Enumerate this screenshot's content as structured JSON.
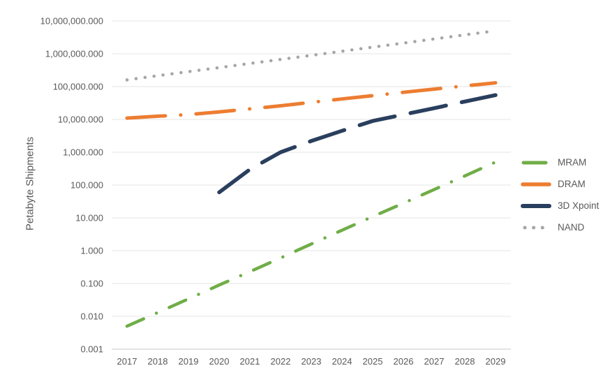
{
  "chart_data": {
    "type": "line",
    "title": "",
    "ylabel": "Petabyte Shipments",
    "xlabel": "",
    "y_scale": "log",
    "ylim_log": [
      -3,
      7
    ],
    "grid": "horizontal",
    "legend_position": "right",
    "x": [
      "2017",
      "2018",
      "2019",
      "2020",
      "2021",
      "2022",
      "2023",
      "2024",
      "2025",
      "2026",
      "2027",
      "2028",
      "2029"
    ],
    "y_ticks": [
      "10,000,000.000",
      "1,000,000.000",
      "100,000.000",
      "10,000.000",
      "1,000.000",
      "100.000",
      "10.000",
      "1.000",
      "0.100",
      "0.010",
      "0.001"
    ],
    "series": [
      {
        "name": "MRAM",
        "color": "#70AD47",
        "line_style": "dash-dot",
        "values": [
          0.005,
          0.013,
          0.034,
          0.09,
          0.23,
          0.6,
          1.6,
          4.2,
          11,
          28,
          73,
          190,
          500
        ]
      },
      {
        "name": "DRAM",
        "color": "#ED7D31",
        "line_style": "long-dash-dot",
        "values": [
          11000,
          12500,
          14000,
          17000,
          21000,
          26000,
          33000,
          42000,
          53000,
          67000,
          84000,
          105000,
          130000
        ]
      },
      {
        "name": "3D Xpoint",
        "color": "#2A3F5E",
        "line_style": "long-dash",
        "values": [
          null,
          null,
          null,
          60,
          300,
          1000,
          2200,
          4500,
          9000,
          14000,
          22000,
          35000,
          55000
        ]
      },
      {
        "name": "NAND",
        "color": "#A6A6A6",
        "line_style": "dot",
        "values": [
          160000,
          215000,
          285000,
          380000,
          505000,
          672000,
          895000,
          1190000,
          1590000,
          2120000,
          2830000,
          3770000,
          5020000
        ]
      }
    ]
  }
}
